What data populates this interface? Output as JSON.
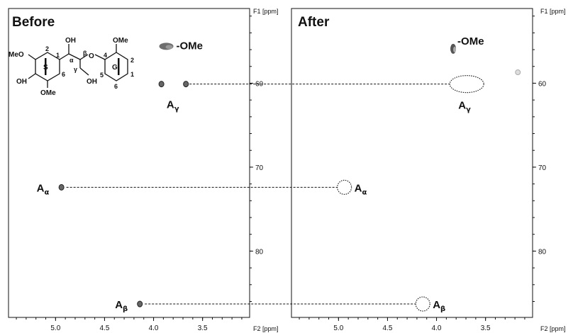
{
  "chart_data": [
    {
      "type": "scatter",
      "title": "Before",
      "xlabel": "F2 [ppm]",
      "ylabel": "F1 [ppm]",
      "xlim": [
        5.48,
        3.02
      ],
      "ylim": [
        87.9,
        51.1
      ],
      "xticks": [
        "5.0",
        "4.5",
        "4.0",
        "3.5"
      ],
      "yticks": [
        "60",
        "70",
        "80"
      ],
      "peaks": [
        {
          "label": "A",
          "sub": "α",
          "x": 4.94,
          "y": 72.4
        },
        {
          "label": "A",
          "sub": "β",
          "x": 4.14,
          "y": 86.3
        },
        {
          "label": "A",
          "sub": "γ",
          "x": 3.92,
          "y": 60.1
        },
        {
          "label": "A",
          "sub": "γ",
          "x": 3.67,
          "y": 60.1
        },
        {
          "label": "-OMe",
          "x": 3.87,
          "y": 55.6
        }
      ],
      "structure_labels": {
        "ring_s": "S",
        "ring_g": "G",
        "meo": "MeO",
        "oh": "OH",
        "ome": "OMe",
        "o": "O",
        "alpha": "α",
        "beta": "β",
        "gamma": "γ",
        "n1": "1",
        "n2": "2",
        "n4": "4",
        "n5": "5",
        "n6": "6"
      }
    },
    {
      "type": "scatter",
      "title": "After",
      "xlabel": "F2 [ppm]",
      "ylabel": "F1 [ppm]",
      "xlim": [
        5.48,
        3.02
      ],
      "ylim": [
        87.9,
        51.1
      ],
      "xticks": [
        "5.0",
        "4.5",
        "4.0",
        "3.5"
      ],
      "yticks": [
        "60",
        "70",
        "80"
      ],
      "peaks": [
        {
          "label": "-OMe",
          "x": 3.83,
          "y": 55.9
        },
        {
          "label": "unlabeled",
          "x": 3.17,
          "y": 58.7
        }
      ],
      "missing_peaks": [
        {
          "label": "A",
          "sub": "γ",
          "x": 3.8,
          "y": 60.1
        },
        {
          "label": "A",
          "sub": "α",
          "x": 4.94,
          "y": 72.4
        },
        {
          "label": "A",
          "sub": "β",
          "x": 4.14,
          "y": 86.3
        }
      ]
    }
  ]
}
